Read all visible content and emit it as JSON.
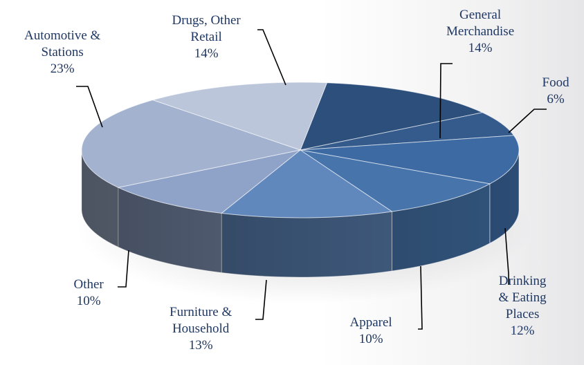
{
  "chart_data": {
    "type": "pie",
    "title": "",
    "slices": [
      {
        "label": "General Merchandise",
        "value": 14,
        "pct_label": "14%",
        "color": "#2d4f7c"
      },
      {
        "label": "Food",
        "value": 6,
        "pct_label": "6%",
        "color": "#355b8c"
      },
      {
        "label": "Drinking & Eating Places",
        "value": 12,
        "pct_label": "12%",
        "color": "#3d6aa2"
      },
      {
        "label": "Apparel",
        "value": 10,
        "pct_label": "10%",
        "color": "#4674ab"
      },
      {
        "label": "Furniture & Household",
        "value": 13,
        "pct_label": "13%",
        "color": "#6088bd"
      },
      {
        "label": "Other",
        "value": 10,
        "pct_label": "10%",
        "color": "#8fa2c8"
      },
      {
        "label": "Automotive & Stations",
        "value": 23,
        "pct_label": "23%",
        "color": "#a3b2cf"
      },
      {
        "label": "Drugs, Other Retail",
        "value": 14,
        "pct_label": "14%",
        "color": "#bcc6da"
      }
    ],
    "labels_display": [
      {
        "lines": [
          "General",
          "Merchandise"
        ],
        "pct": "14%"
      },
      {
        "lines": [
          "Food"
        ],
        "pct": "6%"
      },
      {
        "lines": [
          "Drinking",
          "& Eating",
          "Places"
        ],
        "pct": "12%"
      },
      {
        "lines": [
          "Apparel"
        ],
        "pct": "10%"
      },
      {
        "lines": [
          "Furniture &",
          "Household"
        ],
        "pct": "13%"
      },
      {
        "lines": [
          "Other"
        ],
        "pct": "10%"
      },
      {
        "lines": [
          "Automotive &",
          "Stations"
        ],
        "pct": "23%"
      },
      {
        "lines": [
          "Drugs, Other",
          "Retail"
        ],
        "pct": "14%"
      }
    ],
    "label_color": "#1f3763",
    "leader_color": "#000000",
    "legend": "none",
    "style": "3d-exploded-tilt"
  }
}
